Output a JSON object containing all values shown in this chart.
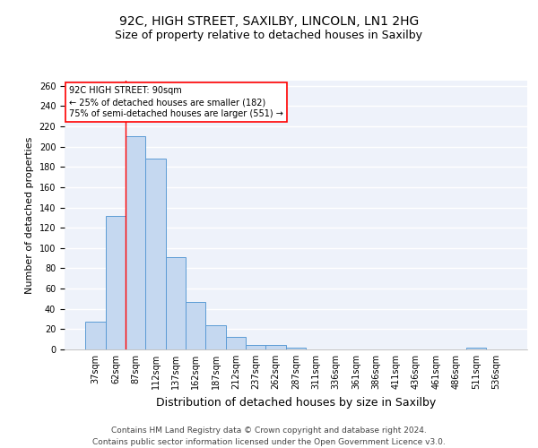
{
  "title1": "92C, HIGH STREET, SAXILBY, LINCOLN, LN1 2HG",
  "title2": "Size of property relative to detached houses in Saxilby",
  "xlabel": "Distribution of detached houses by size in Saxilby",
  "ylabel": "Number of detached properties",
  "bar_labels": [
    "37sqm",
    "62sqm",
    "87sqm",
    "112sqm",
    "137sqm",
    "162sqm",
    "187sqm",
    "212sqm",
    "237sqm",
    "262sqm",
    "287sqm",
    "311sqm",
    "336sqm",
    "361sqm",
    "386sqm",
    "411sqm",
    "436sqm",
    "461sqm",
    "486sqm",
    "511sqm",
    "536sqm"
  ],
  "bar_values": [
    27,
    132,
    210,
    188,
    91,
    47,
    24,
    12,
    4,
    4,
    2,
    0,
    0,
    0,
    0,
    0,
    0,
    0,
    0,
    2,
    0
  ],
  "bar_color": "#c5d8f0",
  "bar_edge_color": "#5b9bd5",
  "red_line_x": 1.5,
  "annotation_text": "92C HIGH STREET: 90sqm\n← 25% of detached houses are smaller (182)\n75% of semi-detached houses are larger (551) →",
  "annotation_box_color": "white",
  "annotation_box_edge_color": "red",
  "ylim": [
    0,
    265
  ],
  "yticks": [
    0,
    20,
    40,
    60,
    80,
    100,
    120,
    140,
    160,
    180,
    200,
    220,
    240,
    260
  ],
  "background_color": "#eef2fa",
  "grid_color": "white",
  "footer": "Contains HM Land Registry data © Crown copyright and database right 2024.\nContains public sector information licensed under the Open Government Licence v3.0.",
  "title1_fontsize": 10,
  "title2_fontsize": 9,
  "xlabel_fontsize": 9,
  "ylabel_fontsize": 8,
  "tick_fontsize": 7,
  "footer_fontsize": 6.5
}
